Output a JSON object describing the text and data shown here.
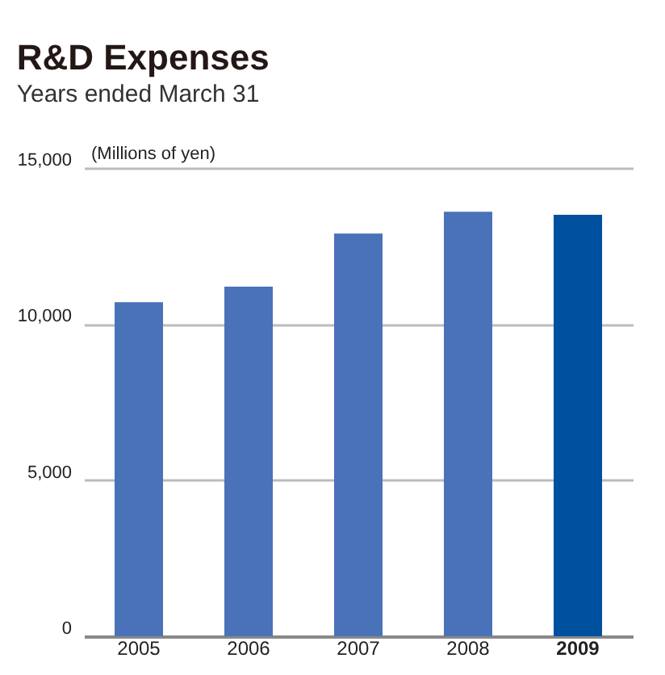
{
  "chart_data": {
    "type": "bar",
    "title": "R&D Expenses",
    "subtitle": "Years ended March 31",
    "ylabel": "(Millions of yen)",
    "categories": [
      "2005",
      "2006",
      "2007",
      "2008",
      "2009"
    ],
    "values": [
      10700,
      11200,
      12900,
      13600,
      13500
    ],
    "colors": [
      "#4a72b8",
      "#4a72b8",
      "#4a72b8",
      "#4a72b8",
      "#0050a0"
    ],
    "ylim": [
      0,
      15000
    ],
    "yticks": [
      {
        "value": 0,
        "label": "0"
      },
      {
        "value": 5000,
        "label": "5,000"
      },
      {
        "value": 10000,
        "label": "10,000"
      },
      {
        "value": 15000,
        "label": "15,000"
      }
    ],
    "grid": "y"
  }
}
